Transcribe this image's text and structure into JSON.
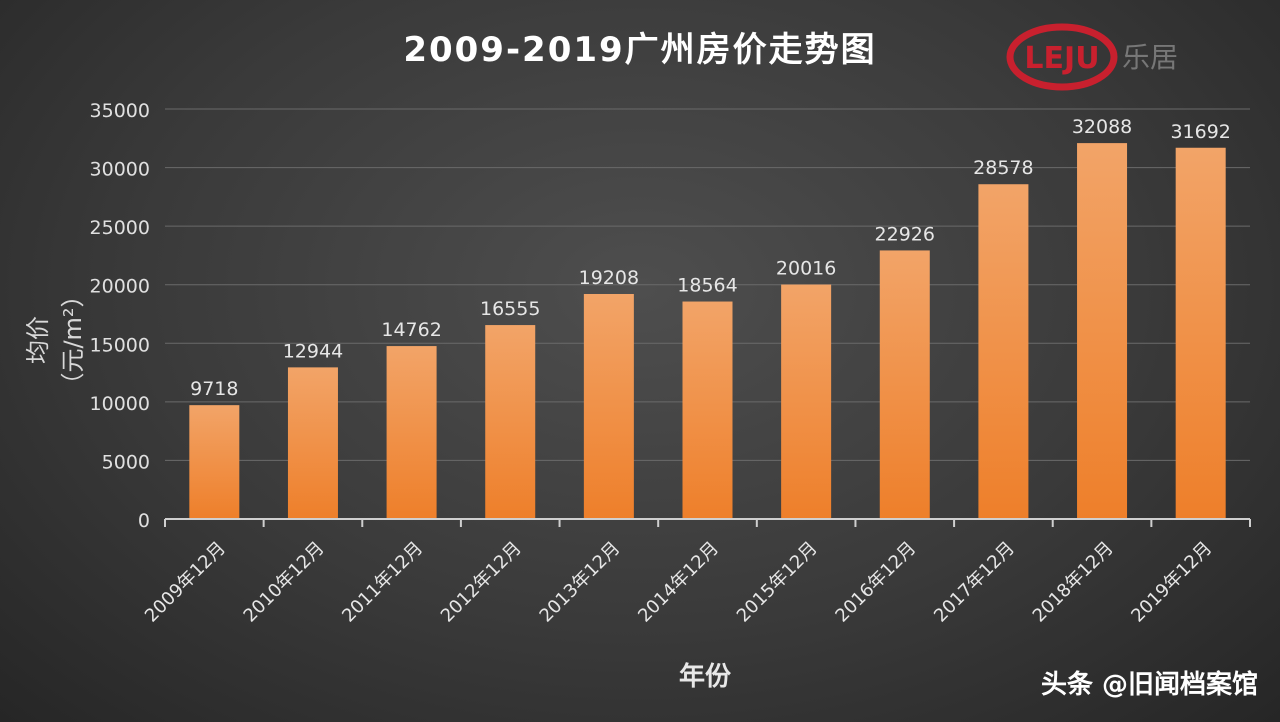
{
  "chart_data": {
    "type": "bar",
    "title": "2009-2019广州房价走势图",
    "xlabel": "年份",
    "ylabel": "均价（元/m²）",
    "categories": [
      "2009年12月",
      "2010年12月",
      "2011年12月",
      "2012年12月",
      "2013年12月",
      "2014年12月",
      "2015年12月",
      "2016年12月",
      "2017年12月",
      "2018年12月",
      "2019年12月"
    ],
    "values": [
      9718,
      12944,
      14762,
      16555,
      19208,
      18564,
      20016,
      22926,
      28578,
      32088,
      31692
    ],
    "ylim": [
      0,
      35000
    ],
    "yticks": [
      0,
      5000,
      10000,
      15000,
      20000,
      25000,
      30000,
      35000
    ],
    "grid": true,
    "bar_color": "#ee7f2a",
    "bar_color_top": "#f2a468"
  },
  "logo": {
    "mark": "LEJU",
    "text": "乐居",
    "color": "#c8202e"
  },
  "watermark": "头条 @旧闻档案馆"
}
